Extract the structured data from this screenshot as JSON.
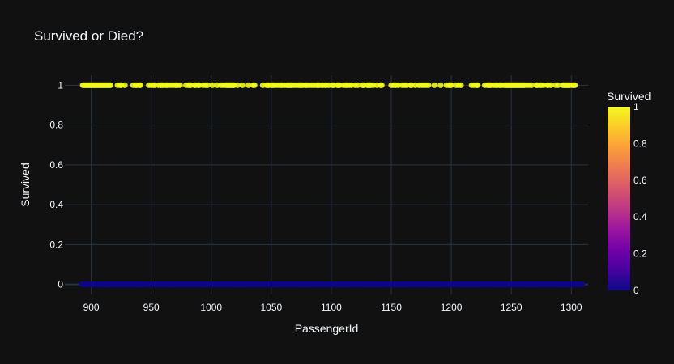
{
  "chart_data": {
    "type": "scatter",
    "title": "Survived or Died?",
    "xlabel": "PassengerId",
    "ylabel": "Survived",
    "xlim": [
      878,
      1314
    ],
    "ylim": [
      -0.05,
      1.05
    ],
    "x_ticks": [
      900,
      950,
      1000,
      1050,
      1100,
      1150,
      1200,
      1250,
      1300
    ],
    "y_ticks": [
      0,
      0.2,
      0.4,
      0.6,
      0.8,
      1
    ],
    "y_tick_labels": [
      "0",
      "0.2",
      "0.4",
      "0.6",
      "0.8",
      "1"
    ],
    "grid": true,
    "colorbar": {
      "title": "Survived",
      "range": [
        0,
        1
      ],
      "ticks": [
        0,
        0.2,
        0.4,
        0.6,
        0.8,
        1
      ],
      "tick_labels": [
        "0",
        "0.2",
        "0.4",
        "0.6",
        "0.8",
        "1"
      ],
      "colorscale": [
        "#0d0887",
        "#46039f",
        "#7201a8",
        "#9c179e",
        "#bd3786",
        "#d8576b",
        "#ed7953",
        "#fb9f3a",
        "#fdca26",
        "#f0f921"
      ]
    },
    "series": [
      {
        "color_value": 1,
        "x": [
          893,
          894,
          895,
          896,
          897,
          898,
          899,
          900,
          901,
          902,
          903,
          904,
          905,
          906,
          907,
          908,
          909,
          910,
          911,
          912,
          913,
          914,
          915,
          916,
          922,
          924,
          925,
          928,
          935,
          937,
          938,
          940,
          941,
          948,
          950,
          952,
          953,
          956,
          958,
          959,
          960,
          962,
          963,
          964,
          966,
          968,
          970,
          971,
          972,
          974,
          979,
          981,
          982,
          983,
          986,
          987,
          989,
          990,
          993,
          995,
          997,
          1001,
          1005,
          1008,
          1010,
          1012,
          1013,
          1014,
          1015,
          1016,
          1017,
          1018,
          1019,
          1022,
          1026,
          1031,
          1035,
          1036,
          1043,
          1046,
          1047,
          1048,
          1050,
          1051,
          1052,
          1054,
          1056,
          1058,
          1059,
          1061,
          1063,
          1064,
          1065,
          1066,
          1067,
          1069,
          1071,
          1073,
          1074,
          1075,
          1076,
          1078,
          1079,
          1080,
          1082,
          1084,
          1086,
          1088,
          1089,
          1090,
          1092,
          1093,
          1095,
          1096,
          1098,
          1101,
          1102,
          1105,
          1106,
          1107,
          1110,
          1112,
          1113,
          1115,
          1117,
          1120,
          1122,
          1126,
          1127,
          1130,
          1131,
          1132,
          1133,
          1135,
          1138,
          1141,
          1142,
          1150,
          1152,
          1154,
          1156,
          1159,
          1161,
          1163,
          1166,
          1167,
          1170,
          1173,
          1175,
          1177,
          1179,
          1181,
          1186,
          1191,
          1196,
          1198,
          1199,
          1200,
          1204,
          1206,
          1208,
          1217,
          1219,
          1221,
          1222,
          1228,
          1230,
          1231,
          1232,
          1233,
          1235,
          1237,
          1238,
          1240,
          1241,
          1242,
          1244,
          1245,
          1246,
          1247,
          1248,
          1249,
          1250,
          1251,
          1252,
          1253,
          1254,
          1255,
          1256,
          1257,
          1258,
          1259,
          1260,
          1261,
          1263,
          1265,
          1267,
          1271,
          1272,
          1274,
          1275,
          1277,
          1280,
          1281,
          1283,
          1287,
          1289,
          1293,
          1294,
          1295,
          1296,
          1297,
          1298,
          1299,
          1301,
          1302,
          1303
        ]
      },
      {
        "color_value": 0,
        "x_range": [
          892,
          1309
        ]
      }
    ]
  }
}
